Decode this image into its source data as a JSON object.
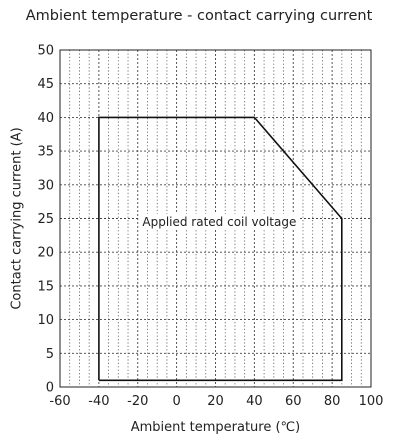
{
  "chart_data": {
    "type": "line",
    "title": "Ambient temperature - contact carrying current",
    "xlabel": "Ambient temperature (℃)",
    "ylabel": "Contact carrying current (A)",
    "xlim": [
      -60,
      100
    ],
    "ylim": [
      0,
      50
    ],
    "x_ticks": [
      -60,
      -40,
      -20,
      0,
      20,
      40,
      60,
      80,
      100
    ],
    "y_ticks": [
      0,
      5,
      10,
      15,
      20,
      25,
      30,
      35,
      40,
      45,
      50
    ],
    "x_tick_labels": [
      "-60",
      "-40",
      "-20",
      "0",
      "20",
      "40",
      "60",
      "80",
      "100"
    ],
    "y_tick_labels": [
      "0",
      "5",
      "10",
      "15",
      "20",
      "25",
      "30",
      "35",
      "40",
      "45",
      "50"
    ],
    "grid": true,
    "series": [
      {
        "name": "",
        "x": [
          -40,
          -40,
          40,
          85,
          85,
          -40
        ],
        "y": [
          1,
          40,
          40,
          25,
          1,
          1
        ]
      }
    ],
    "annotations": [
      {
        "text": "Applied rated coil voltage",
        "x": 22,
        "y": 24.5
      }
    ]
  }
}
